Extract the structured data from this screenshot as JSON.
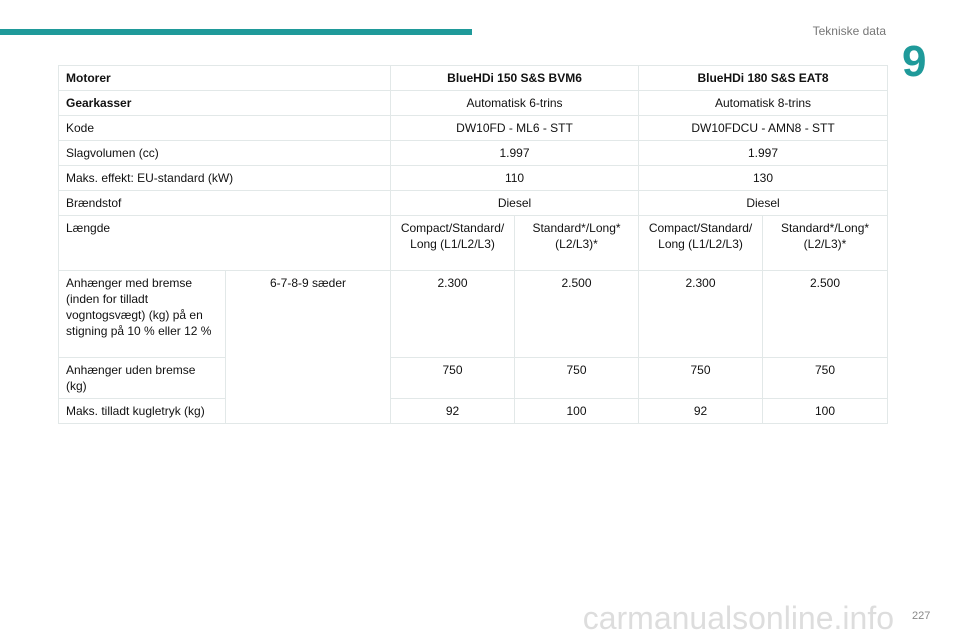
{
  "header": {
    "section": "Tekniske data",
    "chapter": "9"
  },
  "table": {
    "motorer": "Motorer",
    "eng1": "BlueHDi 150 S&S BVM6",
    "eng2": "BlueHDi 180 S&S EAT8",
    "gear": "Gearkasser",
    "gear1": "Automatisk 6-trins",
    "gear2": "Automatisk 8-trins",
    "kode": "Kode",
    "kode1": "DW10FD - ML6 - STT",
    "kode2": "DW10FDCU - AMN8 - STT",
    "slag": "Slagvolumen (cc)",
    "slag1": "1.997",
    "slag2": "1.997",
    "effekt": "Maks. effekt: EU-standard (kW)",
    "effekt1": "110",
    "effekt2": "130",
    "braend": "Brændstof",
    "braend1": "Diesel",
    "braend2": "Diesel",
    "laengde": "Længde",
    "l1": "Compact/Standard/ Long (L1/L2/L3)",
    "l2": "Standard*/Long* (L2/L3)*",
    "l3": "Compact/Standard/ Long (L1/L2/L3)",
    "l4": "Standard*/Long* (L2/L3)*",
    "seats": "6-7-8-9 sæder",
    "rows": [
      {
        "label": "Anhænger med bremse (inden for tilladt vogntogsvægt) (kg) på en stigning på 10 % eller 12 %",
        "v": [
          "2.300",
          "2.500",
          "2.300",
          "2.500"
        ]
      },
      {
        "label": "Anhænger uden bremse (kg)",
        "v": [
          "750",
          "750",
          "750",
          "750"
        ]
      },
      {
        "label": "Maks. tilladt kugletryk (kg)",
        "v": [
          "92",
          "100",
          "92",
          "100"
        ]
      }
    ]
  },
  "footer": {
    "page": "227",
    "watermark": "carmanualsonline.info"
  }
}
